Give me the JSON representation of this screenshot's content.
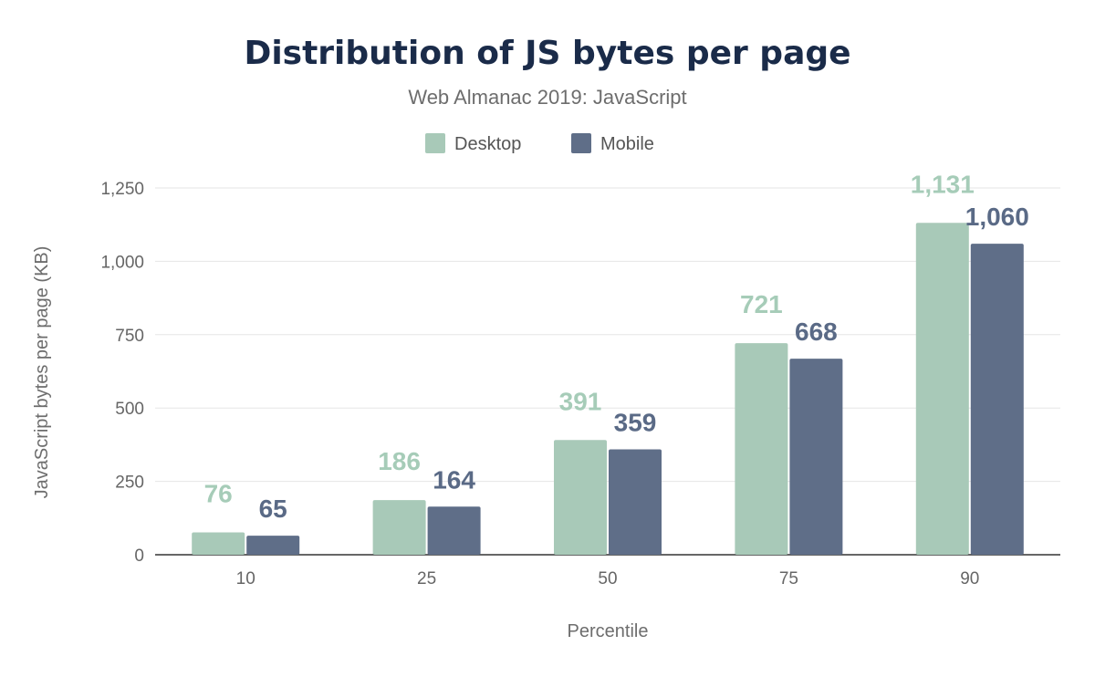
{
  "chart_data": {
    "type": "bar",
    "title": "Distribution of JS bytes per page",
    "subtitle": "Web Almanac 2019: JavaScript",
    "xlabel": "Percentile",
    "ylabel": "JavaScript bytes per page (KB)",
    "categories": [
      "10",
      "25",
      "50",
      "75",
      "90"
    ],
    "ylim": [
      0,
      1250
    ],
    "yticks": [
      0,
      250,
      500,
      750,
      1000,
      1250
    ],
    "ytick_labels": [
      "0",
      "250",
      "500",
      "750",
      "1,000",
      "1,250"
    ],
    "grid": true,
    "legend_position": "top-center",
    "series": [
      {
        "name": "Desktop",
        "values": [
          76,
          186,
          391,
          721,
          1131
        ],
        "labels": [
          "76",
          "186",
          "391",
          "721",
          "1,131"
        ],
        "color": "#a8c9b8",
        "label_color": "#a6ccb8"
      },
      {
        "name": "Mobile",
        "values": [
          65,
          164,
          359,
          668,
          1060
        ],
        "labels": [
          "65",
          "164",
          "359",
          "668",
          "1,060"
        ],
        "color": "#5f6e88",
        "label_color": "#5a6a86"
      }
    ]
  }
}
